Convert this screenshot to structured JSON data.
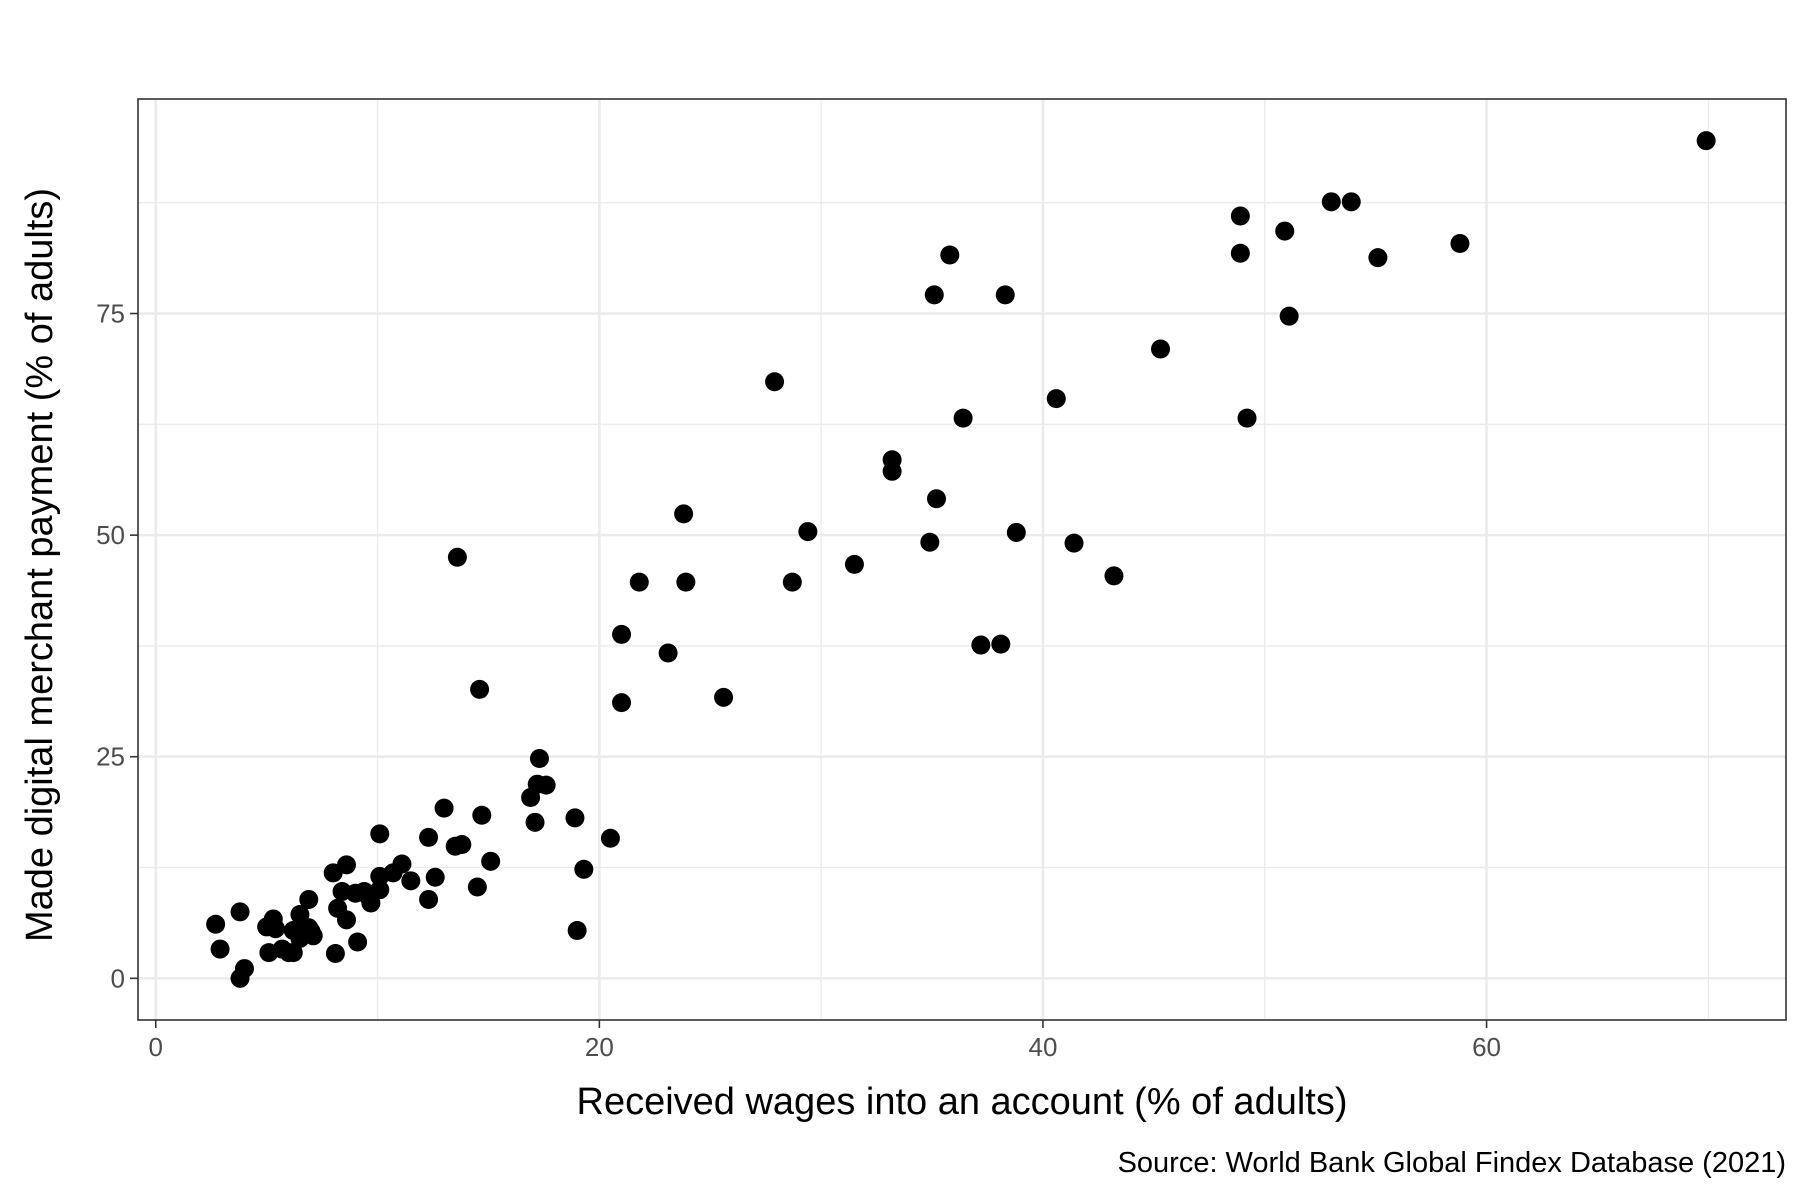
{
  "chart_data": {
    "type": "scatter",
    "xlabel": "Received wages into an account (% of adults)",
    "ylabel": "Made digital merchant payment (% of adults)",
    "caption": "Source: World Bank Global Findex Database (2021)",
    "xlim": [
      -0.8,
      73.5
    ],
    "ylim": [
      -4.7,
      99.2
    ],
    "x_ticks": [
      0,
      20,
      40,
      60
    ],
    "x_tick_labels": [
      "0",
      "20",
      "40",
      "60"
    ],
    "y_ticks": [
      0,
      25,
      50,
      75
    ],
    "y_tick_labels": [
      "0",
      "25",
      "50",
      "75"
    ],
    "x_minor": [
      10,
      30,
      50,
      70
    ],
    "y_minor": [
      12.5,
      37.5,
      62.5,
      87.5
    ],
    "grid": true,
    "point_color": "#000000",
    "panel_border_color": "#333333",
    "grid_color": "#ebebeb",
    "points": [
      {
        "x": 69.9,
        "y": 94.5
      },
      {
        "x": 53.9,
        "y": 87.6
      },
      {
        "x": 53.0,
        "y": 87.6
      },
      {
        "x": 48.9,
        "y": 86.0
      },
      {
        "x": 50.9,
        "y": 84.3
      },
      {
        "x": 58.8,
        "y": 82.9
      },
      {
        "x": 48.9,
        "y": 81.8
      },
      {
        "x": 55.1,
        "y": 81.3
      },
      {
        "x": 35.8,
        "y": 81.6
      },
      {
        "x": 35.1,
        "y": 77.1
      },
      {
        "x": 38.3,
        "y": 77.1
      },
      {
        "x": 51.1,
        "y": 74.7
      },
      {
        "x": 45.3,
        "y": 71.0
      },
      {
        "x": 27.9,
        "y": 67.3
      },
      {
        "x": 40.6,
        "y": 65.4
      },
      {
        "x": 36.4,
        "y": 63.2
      },
      {
        "x": 49.2,
        "y": 63.2
      },
      {
        "x": 33.2,
        "y": 58.5
      },
      {
        "x": 33.2,
        "y": 57.2
      },
      {
        "x": 35.2,
        "y": 54.1
      },
      {
        "x": 23.8,
        "y": 52.4
      },
      {
        "x": 29.4,
        "y": 50.4
      },
      {
        "x": 38.8,
        "y": 50.3
      },
      {
        "x": 34.9,
        "y": 49.2
      },
      {
        "x": 41.4,
        "y": 49.1
      },
      {
        "x": 13.6,
        "y": 47.5
      },
      {
        "x": 31.5,
        "y": 46.7
      },
      {
        "x": 43.2,
        "y": 45.4
      },
      {
        "x": 21.8,
        "y": 44.7
      },
      {
        "x": 23.9,
        "y": 44.7
      },
      {
        "x": 28.7,
        "y": 44.7
      },
      {
        "x": 21.0,
        "y": 38.8
      },
      {
        "x": 37.2,
        "y": 37.6
      },
      {
        "x": 38.1,
        "y": 37.7
      },
      {
        "x": 23.1,
        "y": 36.7
      },
      {
        "x": 14.6,
        "y": 32.6
      },
      {
        "x": 25.6,
        "y": 31.7
      },
      {
        "x": 21.0,
        "y": 31.1
      },
      {
        "x": 17.3,
        "y": 24.8
      },
      {
        "x": 17.2,
        "y": 21.9
      },
      {
        "x": 17.6,
        "y": 21.8
      },
      {
        "x": 16.9,
        "y": 20.4
      },
      {
        "x": 13.0,
        "y": 19.2
      },
      {
        "x": 14.7,
        "y": 18.4
      },
      {
        "x": 18.9,
        "y": 18.1
      },
      {
        "x": 17.1,
        "y": 17.6
      },
      {
        "x": 10.1,
        "y": 16.3
      },
      {
        "x": 12.3,
        "y": 15.9
      },
      {
        "x": 20.5,
        "y": 15.8
      },
      {
        "x": 13.8,
        "y": 15.1
      },
      {
        "x": 13.5,
        "y": 14.9
      },
      {
        "x": 15.1,
        "y": 13.2
      },
      {
        "x": 11.1,
        "y": 12.9
      },
      {
        "x": 8.6,
        "y": 12.8
      },
      {
        "x": 19.3,
        "y": 12.3
      },
      {
        "x": 10.7,
        "y": 11.9
      },
      {
        "x": 8.0,
        "y": 11.9
      },
      {
        "x": 10.1,
        "y": 11.5
      },
      {
        "x": 12.6,
        "y": 11.4
      },
      {
        "x": 11.5,
        "y": 11.0
      },
      {
        "x": 14.5,
        "y": 10.3
      },
      {
        "x": 10.1,
        "y": 10.0
      },
      {
        "x": 8.4,
        "y": 9.8
      },
      {
        "x": 9.0,
        "y": 9.6
      },
      {
        "x": 9.4,
        "y": 9.8
      },
      {
        "x": 9.6,
        "y": 9.2
      },
      {
        "x": 12.3,
        "y": 8.9
      },
      {
        "x": 6.9,
        "y": 8.9
      },
      {
        "x": 9.7,
        "y": 8.5
      },
      {
        "x": 8.2,
        "y": 7.9
      },
      {
        "x": 3.8,
        "y": 7.5
      },
      {
        "x": 6.5,
        "y": 7.2
      },
      {
        "x": 8.6,
        "y": 6.6
      },
      {
        "x": 5.3,
        "y": 6.7
      },
      {
        "x": 2.7,
        "y": 6.1
      },
      {
        "x": 5.0,
        "y": 5.8
      },
      {
        "x": 6.9,
        "y": 5.7
      },
      {
        "x": 5.4,
        "y": 5.6
      },
      {
        "x": 6.2,
        "y": 5.4
      },
      {
        "x": 19.0,
        "y": 5.4
      },
      {
        "x": 7.0,
        "y": 5.3
      },
      {
        "x": 6.6,
        "y": 5.0
      },
      {
        "x": 7.1,
        "y": 4.8
      },
      {
        "x": 6.5,
        "y": 4.5
      },
      {
        "x": 9.1,
        "y": 4.1
      },
      {
        "x": 2.9,
        "y": 3.3
      },
      {
        "x": 5.7,
        "y": 3.3
      },
      {
        "x": 5.1,
        "y": 2.9
      },
      {
        "x": 6.0,
        "y": 2.9
      },
      {
        "x": 6.2,
        "y": 2.9
      },
      {
        "x": 8.1,
        "y": 2.8
      },
      {
        "x": 4.0,
        "y": 1.1
      },
      {
        "x": 3.8,
        "y": 0.0
      }
    ]
  }
}
